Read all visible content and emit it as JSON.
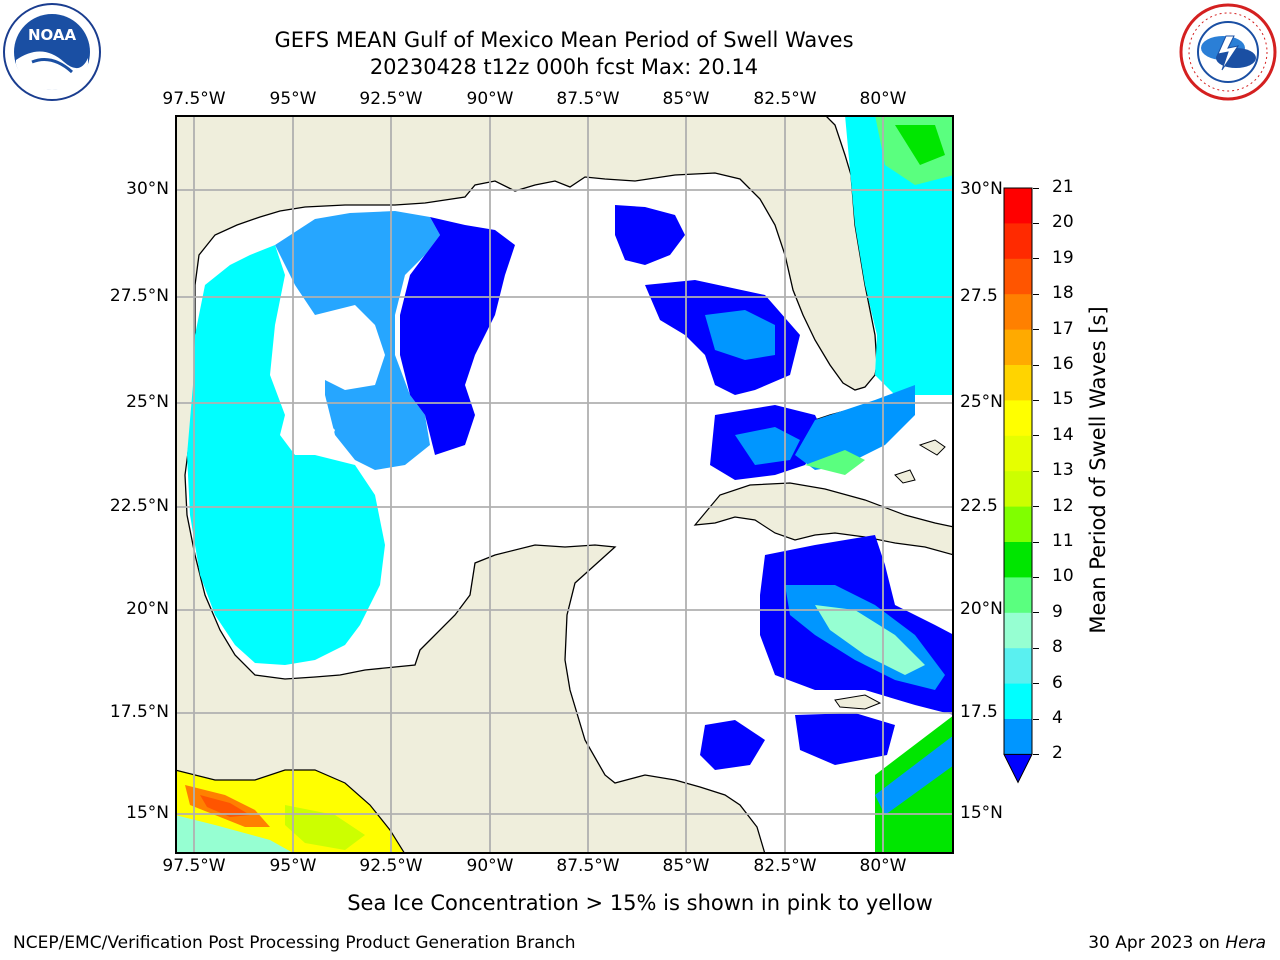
{
  "header": {
    "title_line1": "GEFS MEAN Gulf of Mexico Mean Period of Swell Waves",
    "title_line2": "20230428 t12z 000h fcst   Max: 20.14"
  },
  "logos": {
    "left": "NOAA",
    "right": "NATIONAL WEATHER SERVICE"
  },
  "map": {
    "lon_labels": [
      "97.5°W",
      "95°W",
      "92.5°W",
      "90°W",
      "87.5°W",
      "85°W",
      "82.5°W",
      "80°W"
    ],
    "lat_labels_left": [
      "30°N",
      "27.5°N",
      "25°N",
      "22.5°N",
      "20°N",
      "17.5°N",
      "15°N"
    ],
    "lat_labels_right": [
      "30°N",
      "27.5",
      "25°N",
      "22.5",
      "20°N",
      "17.5",
      "15°N"
    ],
    "colors": {
      "land": "#efeedc",
      "ocean_nodata": "#ffffff",
      "grid": "#b0b0b0"
    }
  },
  "colorbar": {
    "label": "Mean Period of Swell Waves [s]",
    "ticks": [
      "21",
      "20",
      "19",
      "18",
      "17",
      "16",
      "15",
      "14",
      "13",
      "12",
      "11",
      "10",
      "9",
      "8",
      "6",
      "4",
      "2"
    ],
    "colors": [
      "#ff0000",
      "#ff2a00",
      "#ff5500",
      "#ff8000",
      "#ffaa00",
      "#ffd400",
      "#ffff00",
      "#e6ff00",
      "#ccff00",
      "#80ff00",
      "#00e600",
      "#5aff7f",
      "#96ffd2",
      "#5af0f0",
      "#00ffff",
      "#0096ff",
      "#0000ff"
    ]
  },
  "footer": {
    "note": "Sea Ice Concentration > 15% is shown in pink to yellow",
    "credit": "NCEP/EMC/Verification Post Processing Product Generation Branch",
    "date_prefix": "30 Apr 2023 on ",
    "date_host": "Hera"
  }
}
